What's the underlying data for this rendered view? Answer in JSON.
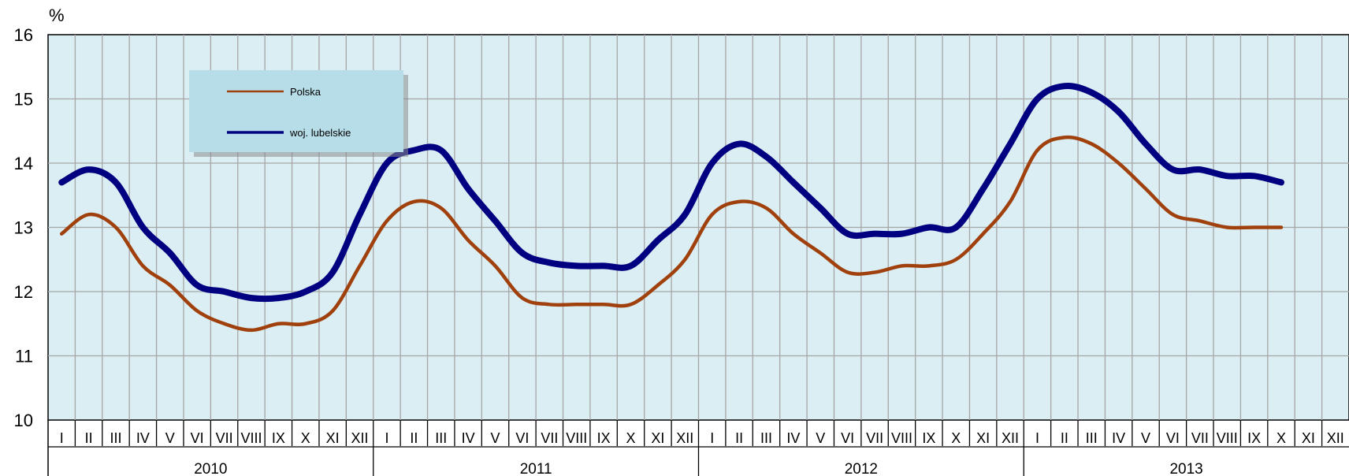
{
  "chart_data": {
    "type": "line",
    "unit_label": "%",
    "ylim": [
      10,
      16
    ],
    "yticks": [
      "10",
      "11",
      "12",
      "13",
      "14",
      "15",
      "16"
    ],
    "grid": true,
    "legend_position": "top-left",
    "colors": {
      "plot_background": "#daeef3",
      "grid": "#a6a6a6",
      "legend_background": "#b7dde8"
    },
    "years": [
      "2010",
      "2011",
      "2012",
      "2013"
    ],
    "months": [
      "I",
      "II",
      "III",
      "IV",
      "V",
      "VI",
      "VII",
      "VIII",
      "IX",
      "X",
      "XI",
      "XII"
    ],
    "x": [
      "I",
      "II",
      "III",
      "IV",
      "V",
      "VI",
      "VII",
      "VIII",
      "IX",
      "X",
      "XI",
      "XII",
      "I",
      "II",
      "III",
      "IV",
      "V",
      "VI",
      "VII",
      "VIII",
      "IX",
      "X",
      "XI",
      "XII",
      "I",
      "II",
      "III",
      "IV",
      "V",
      "VI",
      "VII",
      "VIII",
      "IX",
      "X",
      "XI",
      "XII",
      "I",
      "II",
      "III",
      "IV",
      "V",
      "VI",
      "VII",
      "VIII",
      "IX",
      "X"
    ],
    "series": [
      {
        "name": "Polska",
        "color": "#a0410d",
        "values": [
          12.9,
          13.2,
          13.0,
          12.4,
          12.1,
          11.7,
          11.5,
          11.4,
          11.5,
          11.5,
          11.7,
          12.4,
          13.1,
          13.4,
          13.3,
          12.8,
          12.4,
          11.9,
          11.8,
          11.8,
          11.8,
          11.8,
          12.1,
          12.5,
          13.2,
          13.4,
          13.3,
          12.9,
          12.6,
          12.3,
          12.3,
          12.4,
          12.4,
          12.5,
          12.9,
          13.4,
          14.2,
          14.4,
          14.3,
          14.0,
          13.6,
          13.2,
          13.1,
          13.0,
          13.0,
          13.0
        ]
      },
      {
        "name": "woj. lubelskie",
        "color": "#000080",
        "values": [
          13.7,
          13.9,
          13.7,
          13.0,
          12.6,
          12.1,
          12.0,
          11.9,
          11.9,
          12.0,
          12.3,
          13.2,
          14.0,
          14.2,
          14.2,
          13.6,
          13.1,
          12.6,
          12.45,
          12.4,
          12.4,
          12.4,
          12.8,
          13.2,
          14.0,
          14.3,
          14.1,
          13.7,
          13.3,
          12.9,
          12.9,
          12.9,
          13.0,
          13.0,
          13.6,
          14.3,
          15.0,
          15.2,
          15.1,
          14.8,
          14.3,
          13.9,
          13.9,
          13.8,
          13.8,
          13.7
        ]
      }
    ]
  }
}
